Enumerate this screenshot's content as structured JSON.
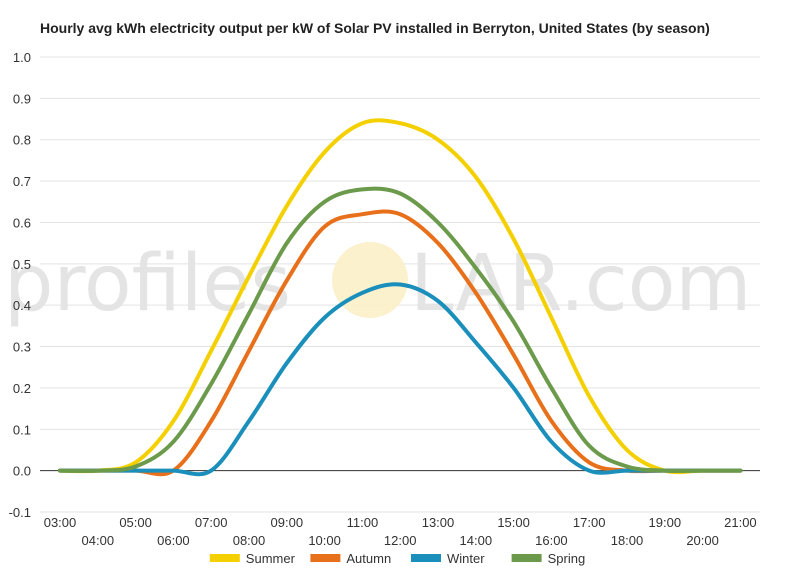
{
  "watermark": {
    "left": "profiles",
    "right": "LAR.com"
  },
  "chart_data": {
    "type": "line",
    "title": "Hourly avg kWh electricity output per kW of Solar PV installed in Berryton, United States (by season)",
    "xlabel": "",
    "ylabel": "",
    "ylim": [
      -0.1,
      1.0
    ],
    "yticks": [
      "-0.1",
      "0.0",
      "0.1",
      "0.2",
      "0.3",
      "0.4",
      "0.5",
      "0.6",
      "0.7",
      "0.8",
      "0.9",
      "1.0"
    ],
    "x": [
      "03:00",
      "04:00",
      "05:00",
      "06:00",
      "07:00",
      "08:00",
      "09:00",
      "10:00",
      "11:00",
      "12:00",
      "13:00",
      "14:00",
      "15:00",
      "16:00",
      "17:00",
      "18:00",
      "19:00",
      "20:00",
      "21:00"
    ],
    "grid": true,
    "legend": "bottom",
    "series": [
      {
        "name": "Summer",
        "color": "#f5d000",
        "values": [
          0.0,
          0.0,
          0.02,
          0.12,
          0.29,
          0.47,
          0.64,
          0.77,
          0.84,
          0.84,
          0.8,
          0.71,
          0.56,
          0.37,
          0.18,
          0.05,
          0.0,
          0.0,
          0.0
        ]
      },
      {
        "name": "Autumn",
        "color": "#e8701a",
        "values": [
          0.0,
          0.0,
          0.0,
          0.0,
          0.12,
          0.29,
          0.46,
          0.59,
          0.62,
          0.62,
          0.55,
          0.43,
          0.28,
          0.12,
          0.02,
          0.0,
          0.0,
          0.0,
          0.0
        ]
      },
      {
        "name": "Winter",
        "color": "#1a8fbb",
        "values": [
          0.0,
          0.0,
          0.0,
          0.0,
          0.0,
          0.12,
          0.26,
          0.37,
          0.43,
          0.45,
          0.41,
          0.31,
          0.2,
          0.07,
          0.0,
          0.0,
          0.0,
          0.0,
          0.0
        ]
      },
      {
        "name": "Spring",
        "color": "#6a9a4a",
        "values": [
          0.0,
          0.0,
          0.01,
          0.07,
          0.21,
          0.38,
          0.55,
          0.65,
          0.68,
          0.67,
          0.6,
          0.49,
          0.36,
          0.2,
          0.06,
          0.01,
          0.0,
          0.0,
          0.0
        ]
      }
    ]
  }
}
